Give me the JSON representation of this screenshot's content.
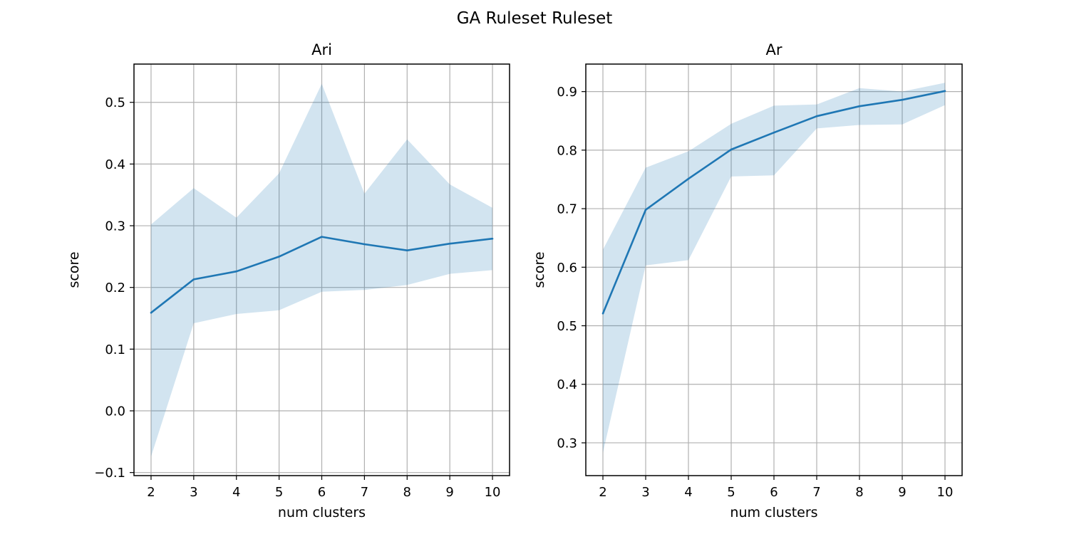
{
  "figure": {
    "suptitle": "GA Ruleset Ruleset"
  },
  "colors": {
    "line": "#1f77b4",
    "band": "#1f77b4",
    "grid": "#b0b0b0",
    "axes": "#000000"
  },
  "chart_data": [
    {
      "type": "line",
      "title": "Ari",
      "xlabel": "num clusters",
      "ylabel": "score",
      "xlim": [
        1.6,
        10.4
      ],
      "ylim": [
        -0.105,
        0.562
      ],
      "x_ticks": [
        2,
        3,
        4,
        5,
        6,
        7,
        8,
        9,
        10
      ],
      "y_ticks": [
        -0.1,
        0.0,
        0.1,
        0.2,
        0.3,
        0.4,
        0.5
      ],
      "y_tick_labels": [
        "−0.1",
        "0.0",
        "0.1",
        "0.2",
        "0.3",
        "0.4",
        "0.5"
      ],
      "grid": true,
      "x": [
        2,
        3,
        4,
        5,
        6,
        7,
        8,
        9,
        10
      ],
      "series": [
        {
          "values": [
            0.159,
            0.213,
            0.226,
            0.25,
            0.282,
            0.27,
            0.26,
            0.271,
            0.279
          ],
          "band_upper": [
            0.302,
            0.361,
            0.313,
            0.385,
            0.53,
            0.352,
            0.44,
            0.367,
            0.329
          ],
          "band_lower": [
            -0.074,
            0.142,
            0.157,
            0.163,
            0.193,
            0.196,
            0.204,
            0.222,
            0.228
          ]
        }
      ]
    },
    {
      "type": "line",
      "title": "Ar",
      "xlabel": "num clusters",
      "ylabel": "score",
      "xlim": [
        1.6,
        10.4
      ],
      "ylim": [
        0.244,
        0.947
      ],
      "x_ticks": [
        2,
        3,
        4,
        5,
        6,
        7,
        8,
        9,
        10
      ],
      "y_ticks": [
        0.3,
        0.4,
        0.5,
        0.6,
        0.7,
        0.8,
        0.9
      ],
      "y_tick_labels": [
        "0.3",
        "0.4",
        "0.5",
        "0.6",
        "0.7",
        "0.8",
        "0.9"
      ],
      "grid": true,
      "x": [
        2,
        3,
        4,
        5,
        6,
        7,
        8,
        9,
        10
      ],
      "series": [
        {
          "values": [
            0.521,
            0.698,
            0.751,
            0.801,
            0.83,
            0.858,
            0.875,
            0.886,
            0.901
          ],
          "band_upper": [
            0.63,
            0.77,
            0.798,
            0.845,
            0.876,
            0.878,
            0.906,
            0.9,
            0.915
          ],
          "band_lower": [
            0.283,
            0.603,
            0.612,
            0.755,
            0.757,
            0.837,
            0.843,
            0.844,
            0.877
          ]
        }
      ]
    }
  ]
}
